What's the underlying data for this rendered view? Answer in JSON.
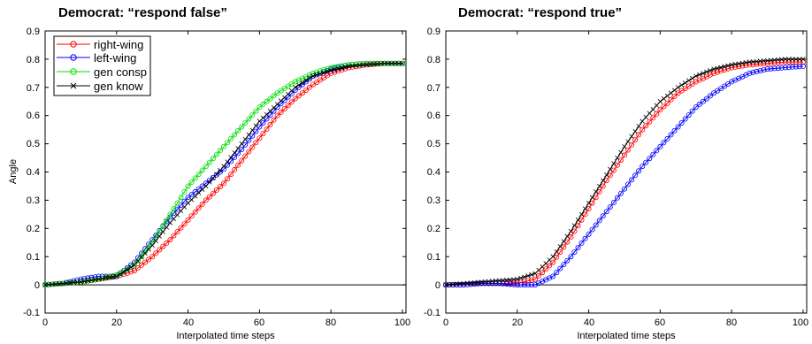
{
  "chart_data": [
    {
      "type": "line",
      "title": "Democrat: “respond false”",
      "xlabel": "Interpolated time steps",
      "ylabel": "Angle",
      "xlim": [
        0,
        101
      ],
      "ylim": [
        -0.1,
        0.9
      ],
      "xticks": [
        "0",
        "20",
        "40",
        "60",
        "80",
        "100"
      ],
      "yticks": [
        "-0.1",
        "0",
        "0.1",
        "0.2",
        "0.3",
        "0.4",
        "0.5",
        "0.6",
        "0.7",
        "0.8",
        "0.9"
      ],
      "grid": false,
      "legend_position": "top-left",
      "baseline": 0,
      "series": [
        {
          "name": "right-wing",
          "color": "#ff0000",
          "marker": "circle",
          "x": [
            0,
            5,
            10,
            15,
            20,
            25,
            30,
            35,
            40,
            45,
            50,
            55,
            60,
            65,
            70,
            75,
            80,
            85,
            90,
            95,
            100
          ],
          "y": [
            0,
            0.005,
            0.01,
            0.02,
            0.03,
            0.05,
            0.1,
            0.16,
            0.23,
            0.3,
            0.36,
            0.44,
            0.52,
            0.6,
            0.66,
            0.71,
            0.75,
            0.77,
            0.78,
            0.785,
            0.785
          ]
        },
        {
          "name": "left-wing",
          "color": "#0000ff",
          "marker": "circle",
          "x": [
            0,
            5,
            10,
            15,
            20,
            25,
            30,
            35,
            40,
            45,
            50,
            55,
            60,
            65,
            70,
            75,
            80,
            85,
            90,
            95,
            100
          ],
          "y": [
            0,
            0.005,
            0.02,
            0.03,
            0.03,
            0.08,
            0.16,
            0.24,
            0.31,
            0.36,
            0.41,
            0.48,
            0.56,
            0.63,
            0.69,
            0.74,
            0.765,
            0.78,
            0.785,
            0.785,
            0.785
          ]
        },
        {
          "name": "gen consp",
          "color": "#00dd00",
          "marker": "circle",
          "x": [
            0,
            5,
            10,
            15,
            20,
            25,
            30,
            35,
            40,
            45,
            50,
            55,
            60,
            65,
            70,
            75,
            80,
            85,
            90,
            95,
            100
          ],
          "y": [
            0,
            0.005,
            0.01,
            0.02,
            0.035,
            0.07,
            0.15,
            0.25,
            0.35,
            0.42,
            0.49,
            0.56,
            0.63,
            0.68,
            0.72,
            0.75,
            0.77,
            0.78,
            0.785,
            0.785,
            0.785
          ]
        },
        {
          "name": "gen know",
          "color": "#000000",
          "marker": "x",
          "x": [
            0,
            5,
            10,
            15,
            20,
            25,
            30,
            35,
            40,
            45,
            50,
            55,
            60,
            65,
            70,
            75,
            80,
            85,
            90,
            95,
            100
          ],
          "y": [
            0,
            0.005,
            0.01,
            0.02,
            0.03,
            0.07,
            0.14,
            0.22,
            0.29,
            0.35,
            0.42,
            0.5,
            0.58,
            0.64,
            0.7,
            0.74,
            0.76,
            0.775,
            0.78,
            0.785,
            0.785
          ]
        }
      ]
    },
    {
      "type": "line",
      "title": "Democrat: “respond true”",
      "xlabel": "Interpolated time steps",
      "ylabel": "",
      "xlim": [
        0,
        101
      ],
      "ylim": [
        -0.1,
        0.9
      ],
      "xticks": [
        "0",
        "20",
        "40",
        "60",
        "80",
        "100"
      ],
      "yticks": [
        "-0.1",
        "0",
        "0.1",
        "0.2",
        "0.3",
        "0.4",
        "0.5",
        "0.6",
        "0.7",
        "0.8",
        "0.9"
      ],
      "grid": false,
      "baseline": 0,
      "series": [
        {
          "name": "right-wing",
          "color": "#ff0000",
          "marker": "circle",
          "x": [
            0,
            5,
            10,
            15,
            20,
            25,
            30,
            35,
            40,
            45,
            50,
            55,
            60,
            65,
            70,
            75,
            80,
            85,
            90,
            95,
            100
          ],
          "y": [
            0,
            0,
            0.005,
            0.005,
            0.005,
            0.02,
            0.08,
            0.17,
            0.27,
            0.37,
            0.46,
            0.55,
            0.62,
            0.68,
            0.72,
            0.75,
            0.77,
            0.78,
            0.785,
            0.79,
            0.79
          ]
        },
        {
          "name": "left-wing",
          "color": "#0000ff",
          "marker": "circle",
          "x": [
            0,
            5,
            10,
            15,
            20,
            25,
            30,
            35,
            40,
            45,
            50,
            55,
            60,
            65,
            70,
            75,
            80,
            85,
            90,
            95,
            100
          ],
          "y": [
            0,
            0,
            0.005,
            0.005,
            0,
            0,
            0.03,
            0.1,
            0.18,
            0.26,
            0.34,
            0.42,
            0.49,
            0.56,
            0.63,
            0.68,
            0.72,
            0.75,
            0.765,
            0.77,
            0.775
          ]
        },
        {
          "name": "gen know",
          "color": "#000000",
          "marker": "x",
          "x": [
            0,
            5,
            10,
            15,
            20,
            25,
            30,
            35,
            40,
            45,
            50,
            55,
            60,
            65,
            70,
            75,
            80,
            85,
            90,
            95,
            100
          ],
          "y": [
            0,
            0.005,
            0.01,
            0.015,
            0.02,
            0.04,
            0.1,
            0.19,
            0.29,
            0.39,
            0.49,
            0.58,
            0.65,
            0.7,
            0.74,
            0.765,
            0.78,
            0.79,
            0.795,
            0.8,
            0.8
          ]
        }
      ]
    }
  ]
}
